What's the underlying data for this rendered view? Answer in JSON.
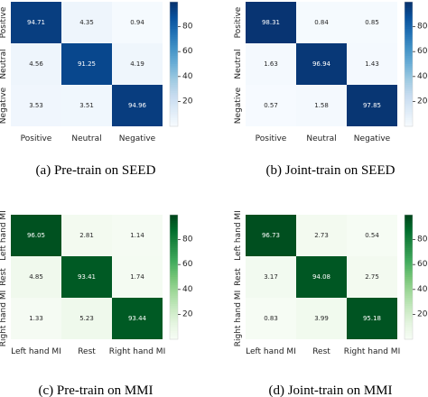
{
  "chart_data": [
    {
      "type": "heatmap",
      "caption": "(a) Pre-train on SEED",
      "colormap": "blue",
      "rows": [
        "Positive",
        "Neutral",
        "Negative"
      ],
      "cols": [
        "Positive",
        "Neutral",
        "Negative"
      ],
      "values": [
        [
          94.71,
          4.35,
          0.94
        ],
        [
          4.56,
          91.25,
          4.19
        ],
        [
          3.53,
          3.51,
          94.96
        ]
      ],
      "colorbar_ticks": [
        20,
        40,
        60,
        80
      ],
      "vmin": 0,
      "vmax": 100
    },
    {
      "type": "heatmap",
      "caption": "(b) Joint-train on SEED",
      "colormap": "blue",
      "rows": [
        "Positive",
        "Neutral",
        "Negative"
      ],
      "cols": [
        "Positive",
        "Neutral",
        "Negative"
      ],
      "values": [
        [
          98.31,
          0.84,
          0.85
        ],
        [
          1.63,
          96.94,
          1.43
        ],
        [
          0.57,
          1.58,
          97.85
        ]
      ],
      "colorbar_ticks": [
        20,
        40,
        60,
        80
      ],
      "vmin": 0,
      "vmax": 100
    },
    {
      "type": "heatmap",
      "caption": "(c) Pre-train on MMI",
      "colormap": "green",
      "rows": [
        "Left hand MI",
        "Rest",
        "Right hand MI"
      ],
      "cols": [
        "Left hand MI",
        "Rest",
        "Right hand MI"
      ],
      "values": [
        [
          96.05,
          2.81,
          1.14
        ],
        [
          4.85,
          93.41,
          1.74
        ],
        [
          1.33,
          5.23,
          93.44
        ]
      ],
      "colorbar_ticks": [
        20,
        40,
        60,
        80
      ],
      "vmin": 0,
      "vmax": 100
    },
    {
      "type": "heatmap",
      "caption": "(d) Joint-train on MMI",
      "colormap": "green",
      "rows": [
        "Left hand MI",
        "Rest",
        "Right hand MI"
      ],
      "cols": [
        "Left hand MI",
        "Rest",
        "Right hand MI"
      ],
      "values": [
        [
          96.73,
          2.73,
          0.54
        ],
        [
          3.17,
          94.08,
          2.75
        ],
        [
          0.83,
          3.99,
          95.18
        ]
      ],
      "colorbar_ticks": [
        20,
        40,
        60,
        80
      ],
      "vmin": 0,
      "vmax": 100
    }
  ]
}
